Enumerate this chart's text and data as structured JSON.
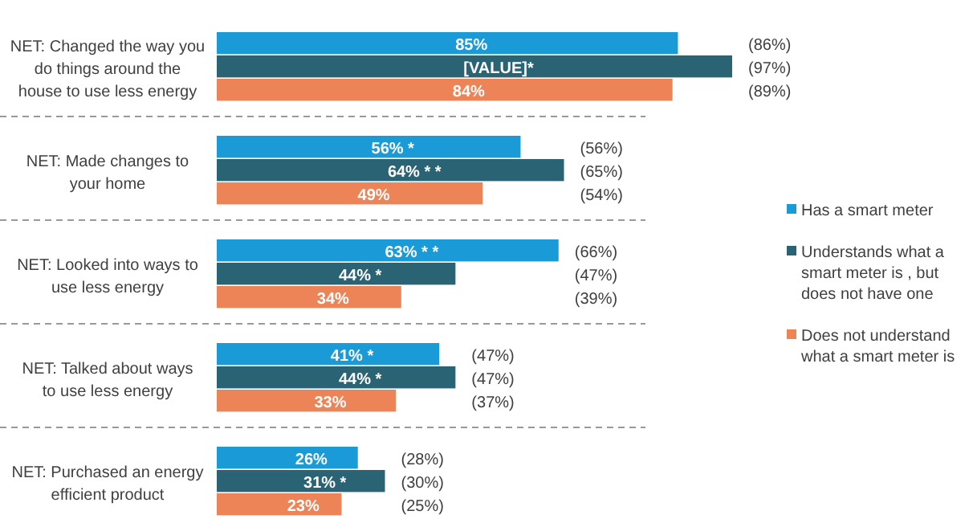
{
  "chart_data": {
    "type": "bar",
    "orientation": "horizontal",
    "categories": [
      "NET: Changed the way you do things around the house to use less energy",
      "NET: Made changes to your home",
      "NET: Looked into ways to use less energy",
      "NET: Talked about ways to use less energy",
      "NET: Purchased an energy efficient product"
    ],
    "series": [
      {
        "name": "Has a smart meter",
        "color": "#1a9ad6",
        "values": [
          85,
          56,
          63,
          41,
          26
        ],
        "value_labels": [
          "85%",
          "56% *",
          "63% * *",
          "41% *",
          "26%"
        ]
      },
      {
        "name": "Understands what a smart meter is , but does not have one",
        "color": "#2a6373",
        "values": [
          95,
          64,
          44,
          44,
          31
        ],
        "value_labels": [
          "[VALUE]*",
          "64% * *",
          "44% *",
          "44% *",
          "31% *"
        ]
      },
      {
        "name": "Does not understand what a smart meter is",
        "color": "#ec8458",
        "values": [
          84,
          49,
          34,
          33,
          23
        ],
        "value_labels": [
          "84%",
          "49%",
          "34%",
          "33%",
          "23%"
        ]
      }
    ],
    "annotations": [
      "(86%)",
      "(97%)",
      "(89%)",
      "(56%)",
      "(65%)",
      "(54%)",
      "(66%)",
      "(47%)",
      "(39%)",
      "(47%)",
      "(47%)",
      "(37%)",
      "(28%)",
      "(30%)",
      "(25%)"
    ],
    "legend": "right"
  }
}
